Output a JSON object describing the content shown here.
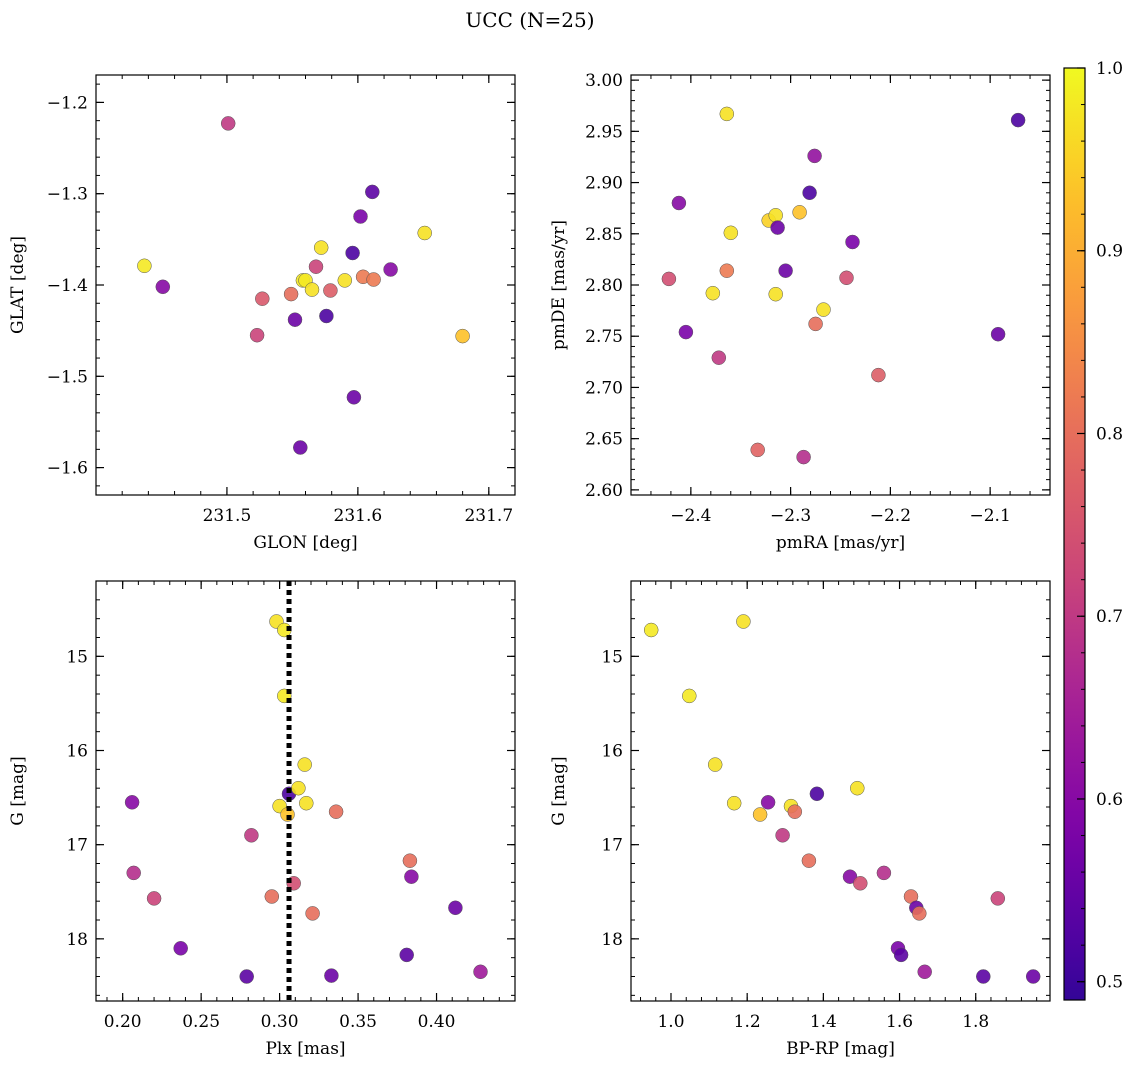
{
  "figure": {
    "title": "UCC (N=25)"
  },
  "colorbar": {
    "vmin": 0.49,
    "vmax": 1.0,
    "ticks": [
      0.5,
      0.6,
      0.7,
      0.8,
      0.9,
      1.0
    ],
    "tick_labels": [
      "0.5",
      "0.6",
      "0.7",
      "0.8",
      "0.9",
      "1.0"
    ],
    "colormap": "plasma"
  },
  "chart_data": [
    {
      "id": "glon-glat",
      "type": "scatter",
      "title": "",
      "xlabel": "GLON [deg]",
      "ylabel": "GLAT [deg]",
      "xlim": [
        231.4,
        231.72
      ],
      "ylim": [
        -1.63,
        -1.17
      ],
      "xticks": [
        231.5,
        231.6,
        231.7
      ],
      "xtick_labels": [
        "231.5",
        "231.6",
        "231.7"
      ],
      "yticks": [
        -1.2,
        -1.3,
        -1.4,
        -1.5,
        -1.6
      ],
      "ytick_labels": [
        "−1.2",
        "−1.3",
        "−1.4",
        "−1.5",
        "−1.6"
      ],
      "y_inverted": false,
      "points": [
        {
          "x": 231.437,
          "y": -1.379,
          "c": 0.98
        },
        {
          "x": 231.451,
          "y": -1.402,
          "c": 0.6
        },
        {
          "x": 231.501,
          "y": -1.223,
          "c": 0.7
        },
        {
          "x": 231.523,
          "y": -1.455,
          "c": 0.72
        },
        {
          "x": 231.527,
          "y": -1.415,
          "c": 0.76
        },
        {
          "x": 231.549,
          "y": -1.41,
          "c": 0.8
        },
        {
          "x": 231.552,
          "y": -1.438,
          "c": 0.56
        },
        {
          "x": 231.556,
          "y": -1.578,
          "c": 0.56
        },
        {
          "x": 231.558,
          "y": -1.395,
          "c": 0.98
        },
        {
          "x": 231.56,
          "y": -1.395,
          "c": 0.98
        },
        {
          "x": 231.565,
          "y": -1.405,
          "c": 0.97
        },
        {
          "x": 231.568,
          "y": -1.38,
          "c": 0.72
        },
        {
          "x": 231.572,
          "y": -1.359,
          "c": 0.97
        },
        {
          "x": 231.576,
          "y": -1.434,
          "c": 0.52
        },
        {
          "x": 231.579,
          "y": -1.406,
          "c": 0.77
        },
        {
          "x": 231.59,
          "y": -1.395,
          "c": 0.97
        },
        {
          "x": 231.596,
          "y": -1.365,
          "c": 0.52
        },
        {
          "x": 231.597,
          "y": -1.523,
          "c": 0.56
        },
        {
          "x": 231.602,
          "y": -1.325,
          "c": 0.58
        },
        {
          "x": 231.604,
          "y": -1.391,
          "c": 0.82
        },
        {
          "x": 231.611,
          "y": -1.298,
          "c": 0.54
        },
        {
          "x": 231.612,
          "y": -1.394,
          "c": 0.82
        },
        {
          "x": 231.625,
          "y": -1.383,
          "c": 0.6
        },
        {
          "x": 231.651,
          "y": -1.343,
          "c": 0.97
        },
        {
          "x": 231.68,
          "y": -1.456,
          "c": 0.93
        }
      ]
    },
    {
      "id": "pmra-pmde",
      "type": "scatter",
      "title": "",
      "xlabel": "pmRA [mas/yr]",
      "ylabel": "pmDE [mas/yr]",
      "xlim": [
        -2.46,
        -2.04
      ],
      "ylim": [
        2.595,
        3.005
      ],
      "xticks": [
        -2.4,
        -2.3,
        -2.2,
        -2.1
      ],
      "xtick_labels": [
        "−2.4",
        "−2.3",
        "−2.2",
        "−2.1"
      ],
      "yticks": [
        2.6,
        2.65,
        2.7,
        2.75,
        2.8,
        2.85,
        2.9,
        2.95,
        3.0
      ],
      "ytick_labels": [
        "2.60",
        "2.65",
        "2.70",
        "2.75",
        "2.80",
        "2.85",
        "2.90",
        "2.95",
        "3.00"
      ],
      "y_inverted": false,
      "points": [
        {
          "x": -2.422,
          "y": 2.806,
          "c": 0.74
        },
        {
          "x": -2.412,
          "y": 2.88,
          "c": 0.6
        },
        {
          "x": -2.405,
          "y": 2.754,
          "c": 0.58
        },
        {
          "x": -2.378,
          "y": 2.792,
          "c": 0.97
        },
        {
          "x": -2.372,
          "y": 2.729,
          "c": 0.7
        },
        {
          "x": -2.364,
          "y": 2.967,
          "c": 0.97
        },
        {
          "x": -2.364,
          "y": 2.814,
          "c": 0.82
        },
        {
          "x": -2.36,
          "y": 2.851,
          "c": 0.97
        },
        {
          "x": -2.333,
          "y": 2.639,
          "c": 0.78
        },
        {
          "x": -2.322,
          "y": 2.863,
          "c": 0.95
        },
        {
          "x": -2.315,
          "y": 2.868,
          "c": 0.97
        },
        {
          "x": -2.315,
          "y": 2.791,
          "c": 0.97
        },
        {
          "x": -2.313,
          "y": 2.856,
          "c": 0.56
        },
        {
          "x": -2.305,
          "y": 2.814,
          "c": 0.56
        },
        {
          "x": -2.291,
          "y": 2.871,
          "c": 0.93
        },
        {
          "x": -2.287,
          "y": 2.632,
          "c": 0.68
        },
        {
          "x": -2.281,
          "y": 2.89,
          "c": 0.52
        },
        {
          "x": -2.276,
          "y": 2.926,
          "c": 0.62
        },
        {
          "x": -2.275,
          "y": 2.762,
          "c": 0.8
        },
        {
          "x": -2.267,
          "y": 2.776,
          "c": 0.97
        },
        {
          "x": -2.244,
          "y": 2.807,
          "c": 0.74
        },
        {
          "x": -2.238,
          "y": 2.842,
          "c": 0.58
        },
        {
          "x": -2.212,
          "y": 2.712,
          "c": 0.77
        },
        {
          "x": -2.092,
          "y": 2.752,
          "c": 0.56
        },
        {
          "x": -2.072,
          "y": 2.961,
          "c": 0.52
        }
      ]
    },
    {
      "id": "plx-g",
      "type": "scatter",
      "title": "",
      "xlabel": "Plx [mas]",
      "ylabel": "G [mag]",
      "xlim": [
        0.183,
        0.45
      ],
      "ylim": [
        18.66,
        14.2
      ],
      "xticks": [
        0.2,
        0.25,
        0.3,
        0.35,
        0.4
      ],
      "xtick_labels": [
        "0.20",
        "0.25",
        "0.30",
        "0.35",
        "0.40"
      ],
      "yticks": [
        15,
        16,
        17,
        18
      ],
      "ytick_labels": [
        "15",
        "16",
        "17",
        "18"
      ],
      "y_inverted": true,
      "vline": {
        "x": 0.306,
        "style": "dotted",
        "color": "#000000"
      },
      "points": [
        {
          "x": 0.206,
          "y": 16.55,
          "c": 0.6
        },
        {
          "x": 0.207,
          "y": 17.3,
          "c": 0.68
        },
        {
          "x": 0.22,
          "y": 17.57,
          "c": 0.72
        },
        {
          "x": 0.237,
          "y": 18.1,
          "c": 0.58
        },
        {
          "x": 0.279,
          "y": 18.4,
          "c": 0.54
        },
        {
          "x": 0.282,
          "y": 16.9,
          "c": 0.7
        },
        {
          "x": 0.295,
          "y": 17.55,
          "c": 0.8
        },
        {
          "x": 0.298,
          "y": 14.63,
          "c": 0.97
        },
        {
          "x": 0.3,
          "y": 16.59,
          "c": 0.97
        },
        {
          "x": 0.303,
          "y": 14.72,
          "c": 0.98
        },
        {
          "x": 0.303,
          "y": 15.42,
          "c": 0.98
        },
        {
          "x": 0.305,
          "y": 16.68,
          "c": 0.93
        },
        {
          "x": 0.306,
          "y": 16.46,
          "c": 0.52
        },
        {
          "x": 0.309,
          "y": 17.41,
          "c": 0.74
        },
        {
          "x": 0.312,
          "y": 16.4,
          "c": 0.97
        },
        {
          "x": 0.316,
          "y": 16.15,
          "c": 0.97
        },
        {
          "x": 0.317,
          "y": 16.56,
          "c": 0.97
        },
        {
          "x": 0.321,
          "y": 17.73,
          "c": 0.8
        },
        {
          "x": 0.333,
          "y": 18.39,
          "c": 0.56
        },
        {
          "x": 0.336,
          "y": 16.65,
          "c": 0.8
        },
        {
          "x": 0.381,
          "y": 18.17,
          "c": 0.54
        },
        {
          "x": 0.383,
          "y": 17.17,
          "c": 0.8
        },
        {
          "x": 0.384,
          "y": 17.34,
          "c": 0.6
        },
        {
          "x": 0.412,
          "y": 17.67,
          "c": 0.56
        },
        {
          "x": 0.428,
          "y": 18.35,
          "c": 0.64
        }
      ]
    },
    {
      "id": "bprp-g",
      "type": "scatter",
      "title": "",
      "xlabel": "BP-RP [mag]",
      "ylabel": "G [mag]",
      "xlim": [
        0.895,
        1.995
      ],
      "ylim": [
        18.66,
        14.2
      ],
      "xticks": [
        1.0,
        1.2,
        1.4,
        1.6,
        1.8
      ],
      "xtick_labels": [
        "1.0",
        "1.2",
        "1.4",
        "1.6",
        "1.8"
      ],
      "yticks": [
        15,
        16,
        17,
        18
      ],
      "ytick_labels": [
        "15",
        "16",
        "17",
        "18"
      ],
      "y_inverted": true,
      "points": [
        {
          "x": 0.948,
          "y": 14.72,
          "c": 0.98
        },
        {
          "x": 1.048,
          "y": 15.42,
          "c": 0.98
        },
        {
          "x": 1.116,
          "y": 16.15,
          "c": 0.97
        },
        {
          "x": 1.166,
          "y": 16.56,
          "c": 0.97
        },
        {
          "x": 1.19,
          "y": 14.63,
          "c": 0.97
        },
        {
          "x": 1.234,
          "y": 16.68,
          "c": 0.93
        },
        {
          "x": 1.255,
          "y": 16.55,
          "c": 0.6
        },
        {
          "x": 1.293,
          "y": 16.9,
          "c": 0.7
        },
        {
          "x": 1.315,
          "y": 16.59,
          "c": 0.97
        },
        {
          "x": 1.325,
          "y": 16.65,
          "c": 0.8
        },
        {
          "x": 1.362,
          "y": 17.17,
          "c": 0.8
        },
        {
          "x": 1.383,
          "y": 16.46,
          "c": 0.52
        },
        {
          "x": 1.47,
          "y": 17.34,
          "c": 0.6
        },
        {
          "x": 1.489,
          "y": 16.4,
          "c": 0.97
        },
        {
          "x": 1.497,
          "y": 17.41,
          "c": 0.74
        },
        {
          "x": 1.559,
          "y": 17.3,
          "c": 0.68
        },
        {
          "x": 1.596,
          "y": 18.1,
          "c": 0.58
        },
        {
          "x": 1.604,
          "y": 18.17,
          "c": 0.54
        },
        {
          "x": 1.63,
          "y": 17.55,
          "c": 0.8
        },
        {
          "x": 1.644,
          "y": 17.67,
          "c": 0.56
        },
        {
          "x": 1.652,
          "y": 17.73,
          "c": 0.8
        },
        {
          "x": 1.666,
          "y": 18.35,
          "c": 0.64
        },
        {
          "x": 1.82,
          "y": 18.4,
          "c": 0.54
        },
        {
          "x": 1.858,
          "y": 17.57,
          "c": 0.72
        },
        {
          "x": 1.951,
          "y": 18.4,
          "c": 0.56
        }
      ]
    }
  ]
}
